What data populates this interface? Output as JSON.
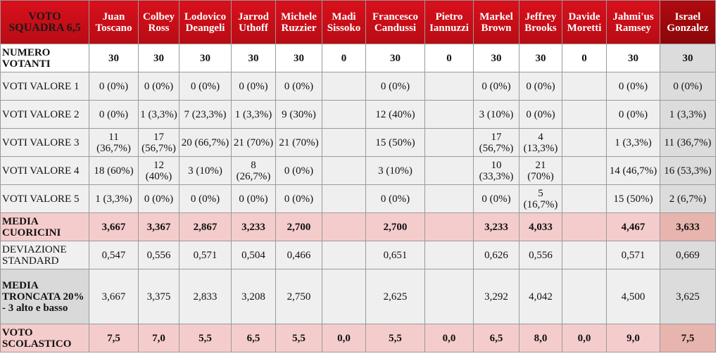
{
  "table": {
    "corner": "VOTO SQUADRA 6,5",
    "columns": [
      "Juan Toscano",
      "Colbey Ross",
      "Lodovico Deangeli",
      "Jarrod Uthoff",
      "Michele Ruzzier",
      "Madi Sissoko",
      "Francesco Candussi",
      "Pietro Iannuzzi",
      "Markel Brown",
      "Jeffrey Brooks",
      "Davide Moretti",
      "Jahmi'us Ramsey",
      "Israel Gonzalez"
    ],
    "rows": [
      {
        "label": "NUMERO VOTANTI",
        "cells": [
          "30",
          "30",
          "30",
          "30",
          "30",
          "0",
          "30",
          "0",
          "30",
          "30",
          "0",
          "30",
          "30"
        ]
      },
      {
        "label": "VOTI VALORE 1",
        "cells": [
          "0 (0%)",
          "0 (0%)",
          "0 (0%)",
          "0 (0%)",
          "0 (0%)",
          null,
          "0 (0%)",
          null,
          "0 (0%)",
          "0 (0%)",
          null,
          "0 (0%)",
          "0 (0%)"
        ]
      },
      {
        "label": "VOTI VALORE 2",
        "cells": [
          "0 (0%)",
          "1 (3,3%)",
          "7 (23,3%)",
          "1 (3,3%)",
          "9 (30%)",
          null,
          "12 (40%)",
          null,
          "3 (10%)",
          "0 (0%)",
          null,
          "0 (0%)",
          "1 (3,3%)"
        ]
      },
      {
        "label": "VOTI VALORE 3",
        "cells": [
          "11 (36,7%)",
          "17 (56,7%)",
          "20 (66,7%)",
          "21 (70%)",
          "21 (70%)",
          null,
          "15 (50%)",
          null,
          "17 (56,7%)",
          "4 (13,3%)",
          null,
          "1 (3,3%)",
          "11 (36,7%)"
        ]
      },
      {
        "label": "VOTI VALORE 4",
        "cells": [
          "18 (60%)",
          "12 (40%)",
          "3 (10%)",
          "8 (26,7%)",
          "0 (0%)",
          null,
          "3 (10%)",
          null,
          "10 (33,3%)",
          "21 (70%)",
          null,
          "14 (46,7%)",
          "16 (53,3%)"
        ]
      },
      {
        "label": "VOTI VALORE 5",
        "cells": [
          "1 (3,3%)",
          "0 (0%)",
          "0 (0%)",
          "0 (0%)",
          "0 (0%)",
          null,
          "0 (0%)",
          null,
          "0 (0%)",
          "5 (16,7%)",
          null,
          "15 (50%)",
          "2 (6,7%)"
        ]
      },
      {
        "label": "MEDIA CUORICINI",
        "cells": [
          "3,667",
          "3,367",
          "2,867",
          "3,233",
          "2,700",
          null,
          "2,700",
          null,
          "3,233",
          "4,033",
          null,
          "4,467",
          "3,633"
        ]
      },
      {
        "label": "DEVIAZIONE STANDARD",
        "cells": [
          "0,547",
          "0,556",
          "0,571",
          "0,504",
          "0,466",
          null,
          "0,651",
          null,
          "0,626",
          "0,556",
          null,
          "0,571",
          "0,669"
        ]
      },
      {
        "label": "MEDIA TRONCATA 20% - 3 alto e basso",
        "cells": [
          "3,667",
          "3,375",
          "2,833",
          "3,208",
          "2,750",
          null,
          "2,625",
          null,
          "3,292",
          "4,042",
          null,
          "4,500",
          "3,625"
        ]
      },
      {
        "label": "VOTO SCOLASTICO",
        "cells": [
          "7,5",
          "7,0",
          "5,5",
          "6,5",
          "5,5",
          "0,0",
          "5,5",
          "0,0",
          "6,5",
          "8,0",
          "0,0",
          "9,0",
          "7,5"
        ]
      }
    ]
  }
}
